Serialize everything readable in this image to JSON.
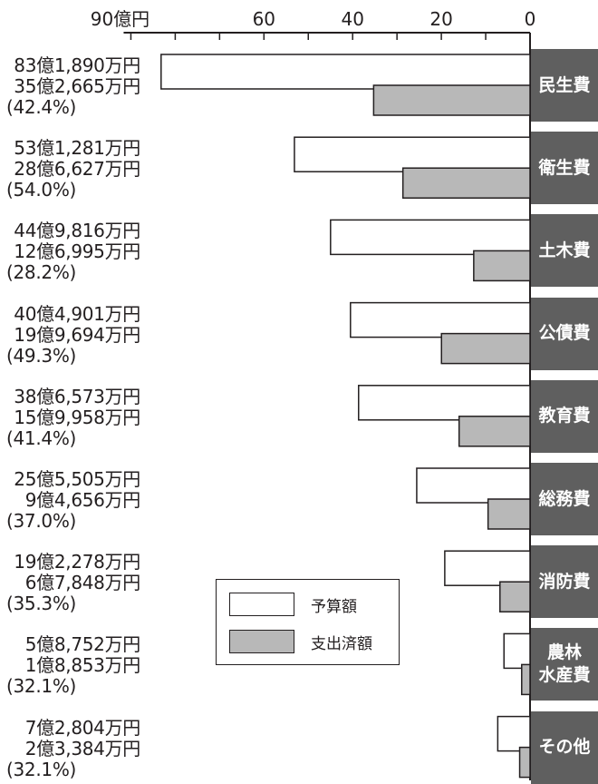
{
  "chart_data": {
    "type": "bar",
    "orientation": "horizontal-leftward",
    "xlim": [
      0,
      90
    ],
    "ticks": [
      {
        "value": 90,
        "label": "90億円"
      },
      {
        "value": 60,
        "label": "60"
      },
      {
        "value": 40,
        "label": "40"
      },
      {
        "value": 20,
        "label": "20"
      },
      {
        "value": 0,
        "label": "0"
      }
    ],
    "legend": {
      "position": "lower-center",
      "entries": [
        {
          "name": "予算額",
          "color": "#ffffff"
        },
        {
          "name": "支出済額",
          "color": "#b8b8b8"
        }
      ]
    },
    "categories": [
      {
        "label": "民生費",
        "budget": 83.189,
        "spent": 35.2665,
        "budget_label": "83億1,890万円",
        "spent_label": "35億2,665万円",
        "pct_label": "(42.4%)"
      },
      {
        "label": "衛生費",
        "budget": 53.1281,
        "spent": 28.6627,
        "budget_label": "53億1,281万円",
        "spent_label": "28億6,627万円",
        "pct_label": "(54.0%)"
      },
      {
        "label": "土木費",
        "budget": 44.9816,
        "spent": 12.6995,
        "budget_label": "44億9,816万円",
        "spent_label": "12億6,995万円",
        "pct_label": "(28.2%)"
      },
      {
        "label": "公債費",
        "budget": 40.4901,
        "spent": 19.9694,
        "budget_label": "40億4,901万円",
        "spent_label": "19億9,694万円",
        "pct_label": "(49.3%)"
      },
      {
        "label": "教育費",
        "budget": 38.6573,
        "spent": 15.9958,
        "budget_label": "38億6,573万円",
        "spent_label": "15億9,958万円",
        "pct_label": "(41.4%)"
      },
      {
        "label": "総務費",
        "budget": 25.5505,
        "spent": 9.4656,
        "budget_label": "25億5,505万円",
        "spent_label": "9億4,656万円",
        "pct_label": "(37.0%)"
      },
      {
        "label": "消防費",
        "budget": 19.2278,
        "spent": 6.7848,
        "budget_label": "19億2,278万円",
        "spent_label": "6億7,848万円",
        "pct_label": "(35.3%)"
      },
      {
        "label": "農林\n水産費",
        "budget": 5.8752,
        "spent": 1.8853,
        "budget_label": "5億8,752万円",
        "spent_label": "1億8,853万円",
        "pct_label": "(32.1%)"
      },
      {
        "label": "その他",
        "budget": 7.2804,
        "spent": 2.3384,
        "budget_label": "7億2,804万円",
        "spent_label": "2億3,384万円",
        "pct_label": "(32.1%)"
      }
    ]
  }
}
